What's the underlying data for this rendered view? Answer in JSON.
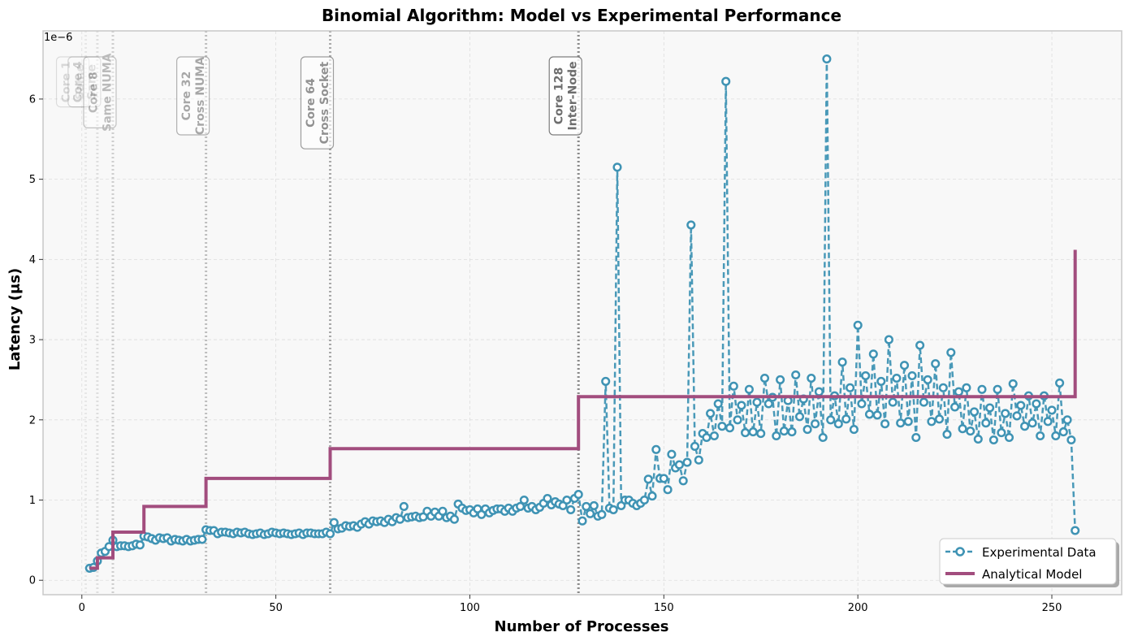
{
  "chart_data": {
    "type": "line",
    "title": "Binomial Algorithm: Model vs Experimental Performance",
    "xlabel": "Number of Processes",
    "ylabel": "Latency (μs)",
    "y_offset_label": "1e−6",
    "xlim": [
      -10,
      268
    ],
    "ylim": [
      -0.18,
      6.85
    ],
    "x_ticks": [
      0,
      50,
      100,
      150,
      200,
      250
    ],
    "y_ticks": [
      0,
      1,
      2,
      3,
      4,
      5,
      6
    ],
    "grid": true,
    "legend_position": "bottom-right",
    "colors": {
      "experimental": "#3f93b4",
      "model": "#a24d7e",
      "background": "#f8f8f8",
      "frame": "#c8c8c8"
    },
    "series": [
      {
        "name": "Experimental Data",
        "style": "dashed line with hollow circle markers",
        "x": [
          2,
          3,
          4,
          5,
          6,
          7,
          8,
          9,
          10,
          11,
          12,
          13,
          14,
          15,
          16,
          17,
          18,
          19,
          20,
          21,
          22,
          23,
          24,
          25,
          26,
          27,
          28,
          29,
          30,
          31,
          32,
          33,
          34,
          35,
          36,
          37,
          38,
          39,
          40,
          41,
          42,
          43,
          44,
          45,
          46,
          47,
          48,
          49,
          50,
          51,
          52,
          53,
          54,
          55,
          56,
          57,
          58,
          59,
          60,
          61,
          62,
          63,
          64,
          65,
          66,
          67,
          68,
          69,
          70,
          71,
          72,
          73,
          74,
          75,
          76,
          77,
          78,
          79,
          80,
          81,
          82,
          83,
          84,
          85,
          86,
          87,
          88,
          89,
          90,
          91,
          92,
          93,
          94,
          95,
          96,
          97,
          98,
          99,
          100,
          101,
          102,
          103,
          104,
          105,
          106,
          107,
          108,
          109,
          110,
          111,
          112,
          113,
          114,
          115,
          116,
          117,
          118,
          119,
          120,
          121,
          122,
          123,
          124,
          125,
          126,
          127,
          128,
          129,
          130,
          131,
          132,
          133,
          134,
          135,
          136,
          137,
          138,
          139,
          140,
          141,
          142,
          143,
          144,
          145,
          146,
          147,
          148,
          149,
          150,
          151,
          152,
          153,
          154,
          155,
          156,
          157,
          158,
          159,
          160,
          161,
          162,
          163,
          164,
          165,
          166,
          167,
          168,
          169,
          170,
          171,
          172,
          173,
          174,
          175,
          176,
          177,
          178,
          179,
          180,
          181,
          182,
          183,
          184,
          185,
          186,
          187,
          188,
          189,
          190,
          191,
          192,
          193,
          194,
          195,
          196,
          197,
          198,
          199,
          200,
          201,
          202,
          203,
          204,
          205,
          206,
          207,
          208,
          209,
          210,
          211,
          212,
          213,
          214,
          215,
          216,
          217,
          218,
          219,
          220,
          221,
          222,
          223,
          224,
          225,
          226,
          227,
          228,
          229,
          230,
          231,
          232,
          233,
          234,
          235,
          236,
          237,
          238,
          239,
          240,
          241,
          242,
          243,
          244,
          245,
          246,
          247,
          248,
          249,
          250,
          251,
          252,
          253,
          254,
          255,
          256
        ],
        "y": [
          0.15,
          0.16,
          0.24,
          0.34,
          0.36,
          0.42,
          0.5,
          0.42,
          0.43,
          0.43,
          0.42,
          0.43,
          0.45,
          0.44,
          0.55,
          0.54,
          0.52,
          0.5,
          0.53,
          0.52,
          0.53,
          0.49,
          0.51,
          0.5,
          0.49,
          0.51,
          0.49,
          0.5,
          0.51,
          0.51,
          0.63,
          0.62,
          0.62,
          0.58,
          0.6,
          0.6,
          0.59,
          0.58,
          0.6,
          0.59,
          0.6,
          0.58,
          0.57,
          0.58,
          0.59,
          0.57,
          0.58,
          0.6,
          0.59,
          0.58,
          0.59,
          0.58,
          0.57,
          0.58,
          0.59,
          0.57,
          0.59,
          0.59,
          0.58,
          0.58,
          0.58,
          0.6,
          0.58,
          0.72,
          0.64,
          0.65,
          0.68,
          0.67,
          0.68,
          0.66,
          0.7,
          0.73,
          0.7,
          0.74,
          0.73,
          0.74,
          0.72,
          0.76,
          0.73,
          0.78,
          0.76,
          0.92,
          0.78,
          0.79,
          0.8,
          0.78,
          0.79,
          0.86,
          0.8,
          0.85,
          0.8,
          0.86,
          0.78,
          0.8,
          0.76,
          0.95,
          0.9,
          0.87,
          0.88,
          0.84,
          0.89,
          0.82,
          0.89,
          0.84,
          0.87,
          0.89,
          0.89,
          0.86,
          0.9,
          0.86,
          0.9,
          0.92,
          1.0,
          0.9,
          0.92,
          0.88,
          0.91,
          0.96,
          1.02,
          0.94,
          0.98,
          0.95,
          0.93,
          1.0,
          0.88,
          1.02,
          1.07,
          0.74,
          0.92,
          0.83,
          0.93,
          0.8,
          0.82,
          2.48,
          0.9,
          0.88,
          5.15,
          0.93,
          1.0,
          1.0,
          0.96,
          0.93,
          0.96,
          1.0,
          1.26,
          1.05,
          1.63,
          1.27,
          1.27,
          1.13,
          1.57,
          1.4,
          1.44,
          1.24,
          1.47,
          4.43,
          1.67,
          1.5,
          1.83,
          1.78,
          2.08,
          1.8,
          2.2,
          1.92,
          6.22,
          1.9,
          2.42,
          2.0,
          2.18,
          1.84,
          2.38,
          1.85,
          2.22,
          1.83,
          2.52,
          2.2,
          2.28,
          1.8,
          2.5,
          1.86,
          2.24,
          1.85,
          2.56,
          2.04,
          2.26,
          1.88,
          2.52,
          1.95,
          2.35,
          1.78,
          6.5,
          2.0,
          2.3,
          1.95,
          2.72,
          2.01,
          2.4,
          1.88,
          3.18,
          2.2,
          2.55,
          2.07,
          2.82,
          2.06,
          2.48,
          1.95,
          3.0,
          2.22,
          2.52,
          1.96,
          2.68,
          1.98,
          2.55,
          1.78,
          2.93,
          2.22,
          2.5,
          1.98,
          2.7,
          2.01,
          2.4,
          1.82,
          2.84,
          2.16,
          2.35,
          1.89,
          2.4,
          1.86,
          2.1,
          1.76,
          2.38,
          1.96,
          2.15,
          1.75,
          2.38,
          1.84,
          2.08,
          1.78,
          2.45,
          2.05,
          2.18,
          1.92,
          2.3,
          1.96,
          2.2,
          1.8,
          2.3,
          1.98,
          2.12,
          1.8,
          2.46,
          1.85,
          2.0,
          1.75,
          0.62
        ]
      },
      {
        "name": "Analytical Model",
        "style": "solid step line",
        "x": [
          2,
          4,
          4,
          8,
          8,
          16,
          16,
          32,
          32,
          64,
          64,
          128,
          128,
          256,
          256
        ],
        "y": [
          0.15,
          0.15,
          0.28,
          0.28,
          0.6,
          0.6,
          0.92,
          0.92,
          1.27,
          1.27,
          1.64,
          1.64,
          2.29,
          2.29,
          4.12
        ]
      }
    ],
    "vlines": [
      {
        "x": 1,
        "label": "Core 1\nSame",
        "alpha": 0.12
      },
      {
        "x": 4,
        "label": "Core 4\nSame",
        "alpha": 0.2
      },
      {
        "x": 8,
        "label": "Core 8\nSame NUMA",
        "alpha": 0.32
      },
      {
        "x": 32,
        "label": "Core 32\nCross NUMA",
        "alpha": 0.45
      },
      {
        "x": 64,
        "label": "Core 64\nCross Socket",
        "alpha": 0.6
      },
      {
        "x": 128,
        "label": "Core 128\nInter-Node",
        "alpha": 0.85
      }
    ]
  }
}
